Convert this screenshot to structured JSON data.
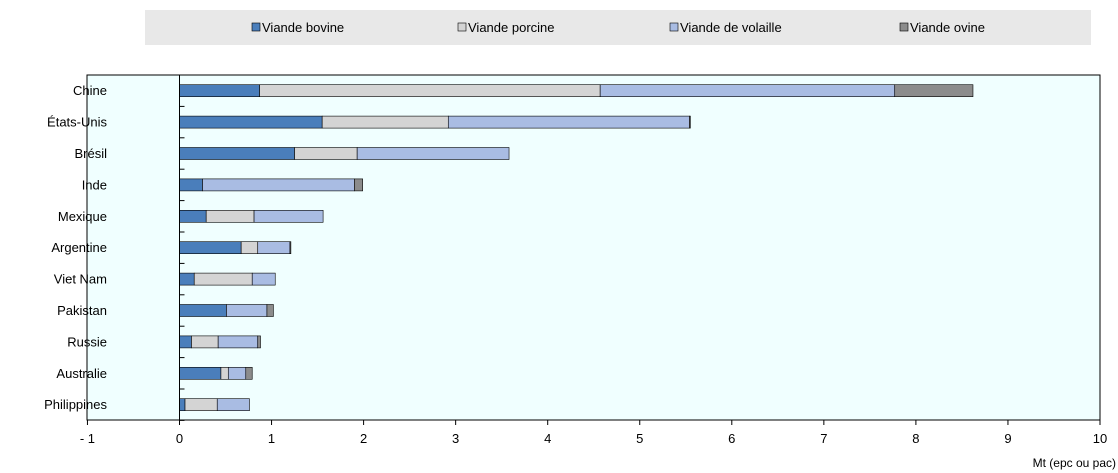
{
  "chart_data": {
    "type": "bar",
    "orientation": "horizontal",
    "stacked": true,
    "categories": [
      "Chine",
      "États-Unis",
      "Brésil",
      "Inde",
      "Mexique",
      "Argentine",
      "Viet Nam",
      "Pakistan",
      "Russie",
      "Australie",
      "Philippines"
    ],
    "series": [
      {
        "name": "Viande bovine",
        "color": "#4a7ebb",
        "values": [
          0.87,
          1.55,
          1.25,
          0.25,
          0.29,
          0.67,
          0.16,
          0.51,
          0.13,
          0.45,
          0.06
        ]
      },
      {
        "name": "Viande porcine",
        "color": "#d4d4d4",
        "values": [
          3.7,
          1.37,
          0.68,
          0.0,
          0.52,
          0.18,
          0.63,
          0.0,
          0.29,
          0.08,
          0.35
        ]
      },
      {
        "name": "Viande de volaille",
        "color": "#a9bce3",
        "values": [
          3.2,
          2.62,
          1.65,
          1.65,
          0.75,
          0.35,
          0.25,
          0.44,
          0.43,
          0.19,
          0.35
        ]
      },
      {
        "name": "Viande ovine",
        "color": "#8c8c8c",
        "values": [
          0.85,
          0.01,
          0.0,
          0.09,
          0.0,
          0.01,
          0.0,
          0.07,
          0.03,
          0.07,
          0.0
        ]
      }
    ],
    "xlim": [
      -1,
      10
    ],
    "xticks": [
      "- 1",
      "0",
      "1",
      "2",
      "3",
      "4",
      "5",
      "6",
      "7",
      "8",
      "9",
      "10"
    ],
    "xlabel": "Mt (epc ou pac)",
    "ylabel": "",
    "title": "",
    "legend_position": "top",
    "grid": false
  }
}
